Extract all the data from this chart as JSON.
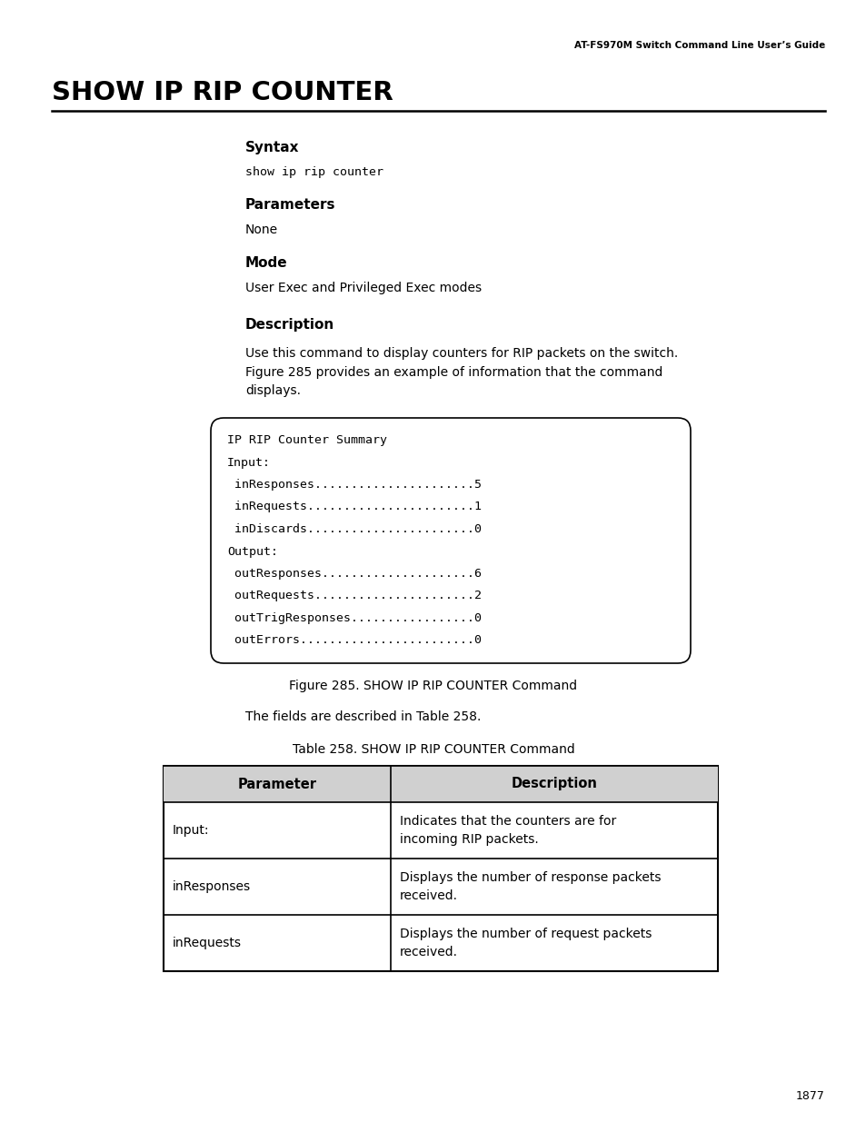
{
  "page_header": "AT-FS970M Switch Command Line User’s Guide",
  "main_title": "SHOW IP RIP COUNTER",
  "section_syntax_label": "Syntax",
  "section_syntax_code": "show ip rip counter",
  "section_params_label": "Parameters",
  "section_params_text": "None",
  "section_mode_label": "Mode",
  "section_mode_text": "User Exec and Privileged Exec modes",
  "section_desc_label": "Description",
  "section_desc_text": "Use this command to display counters for RIP packets on the switch.\nFigure 285 provides an example of information that the command\ndisplays.",
  "code_block_lines": [
    "IP RIP Counter Summary",
    "Input:",
    " inResponses......................5",
    " inRequests.......................1",
    " inDiscards.......................0",
    "Output:",
    " outResponses.....................6",
    " outRequests......................2",
    " outTrigResponses.................0",
    " outErrors........................0"
  ],
  "figure_caption": "Figure 285. SHOW IP RIP COUNTER Command",
  "table_ref_text": "The fields are described in Table 258.",
  "table_caption": "Table 258. SHOW IP RIP COUNTER Command",
  "table_headers": [
    "Parameter",
    "Description"
  ],
  "table_rows": [
    [
      "Input:",
      "Indicates that the counters are for\nincoming RIP packets."
    ],
    [
      "inResponses",
      "Displays the number of response packets\nreceived."
    ],
    [
      "inRequests",
      "Displays the number of request packets\nreceived."
    ]
  ],
  "page_number": "1877",
  "bg_color": "#ffffff",
  "text_color": "#000000",
  "header_col_bg": "#d0d0d0",
  "fig_width": 9.54,
  "fig_height": 12.35,
  "dpi": 100
}
